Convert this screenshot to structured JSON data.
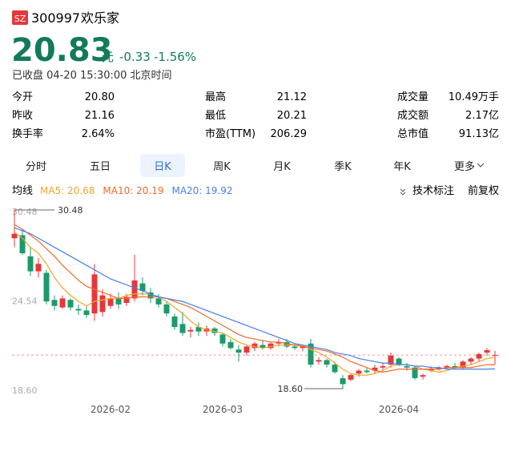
{
  "header": {
    "exchange": "SZ",
    "code": "300997",
    "name": "欢乐家",
    "price": "20.83",
    "unit": "元",
    "change": "-0.33",
    "change_pct": "-1.56%",
    "status": "已收盘 04-20 15:30:00 北京时间"
  },
  "stats": [
    {
      "label": "今开",
      "value": "20.80"
    },
    {
      "label": "最高",
      "value": "21.12"
    },
    {
      "label": "成交量",
      "value": "10.49万手"
    },
    {
      "label": "昨收",
      "value": "21.16"
    },
    {
      "label": "最低",
      "value": "20.21"
    },
    {
      "label": "成交额",
      "value": "2.17亿"
    },
    {
      "label": "换手率",
      "value": "2.64%"
    },
    {
      "label": "市盈(TTM)",
      "value": "206.29"
    },
    {
      "label": "总市值",
      "value": "91.13亿"
    }
  ],
  "tabs": [
    {
      "label": "分时"
    },
    {
      "label": "五日"
    },
    {
      "label": "日K",
      "active": true
    },
    {
      "label": "周K"
    },
    {
      "label": "月K"
    },
    {
      "label": "季K"
    },
    {
      "label": "年K"
    },
    {
      "label": "更多",
      "menu": true
    }
  ],
  "indicator_bar": {
    "label": "均线",
    "tools": [
      "技术标注",
      "前复权"
    ]
  },
  "chart_data": {
    "type": "candlestick",
    "categories": [
      null,
      null,
      null,
      null,
      null,
      null,
      null,
      null,
      null,
      null,
      null,
      null,
      "2026-02",
      null,
      null,
      null,
      null,
      null,
      null,
      null,
      null,
      null,
      null,
      null,
      null,
      null,
      "2026-03",
      null,
      null,
      null,
      null,
      null,
      null,
      null,
      null,
      null,
      null,
      null,
      null,
      null,
      null,
      null,
      null,
      null,
      null,
      null,
      null,
      null,
      "2026-04",
      null,
      null,
      null,
      null,
      null,
      null,
      null,
      null,
      null,
      null,
      null,
      null
    ],
    "open": [
      28.6,
      28.8,
      27.4,
      26.4,
      26.3,
      24.5,
      24.0,
      24.5,
      23.9,
      23.8,
      23.6,
      23.7,
      24.1,
      24.6,
      24.3,
      24.6,
      25.6,
      25.0,
      24.6,
      24.2,
      23.4,
      22.9,
      22.4,
      22.7,
      22.4,
      22.6,
      22.2,
      21.7,
      21.2,
      21.0,
      21.3,
      21.5,
      21.3,
      21.6,
      21.7,
      21.4,
      21.3,
      21.6,
      20.4,
      20.5,
      20.2,
      19.3,
      19.2,
      19.6,
      19.8,
      19.8,
      20.0,
      20.2,
      20.6,
      20.1,
      20.0,
      19.4,
      19.8,
      19.9,
      20.0,
      20.1,
      20.0,
      20.4,
      20.6,
      21.0,
      20.8
    ],
    "high": [
      30.48,
      29.2,
      28.0,
      27.3,
      26.5,
      24.8,
      24.8,
      24.6,
      24.2,
      24.1,
      26.9,
      25.2,
      24.9,
      25.0,
      24.9,
      27.5,
      26.0,
      25.3,
      24.9,
      24.4,
      23.6,
      23.7,
      22.7,
      23.0,
      22.8,
      22.7,
      22.3,
      21.9,
      21.5,
      21.5,
      21.7,
      21.8,
      21.7,
      21.9,
      21.9,
      21.6,
      21.5,
      21.9,
      20.7,
      20.6,
      20.4,
      19.5,
      19.6,
      19.9,
      20.0,
      20.2,
      20.3,
      21.0,
      20.7,
      20.3,
      20.1,
      19.6,
      20.1,
      20.1,
      20.2,
      20.3,
      20.5,
      20.7,
      21.0,
      21.3,
      21.12
    ],
    "low": [
      28.0,
      27.5,
      26.1,
      26.0,
      24.2,
      23.8,
      23.9,
      23.8,
      23.5,
      23.3,
      23.1,
      23.4,
      23.9,
      23.9,
      24.1,
      24.4,
      24.8,
      24.3,
      24.0,
      23.4,
      22.5,
      22.1,
      22.0,
      22.1,
      22.1,
      22.1,
      21.4,
      21.2,
      20.4,
      20.8,
      21.1,
      21.2,
      21.2,
      21.4,
      21.3,
      21.2,
      21.1,
      20.0,
      20.2,
      20.0,
      19.6,
      18.6,
      19.1,
      19.4,
      19.6,
      19.6,
      19.8,
      20.0,
      20.1,
      19.8,
      19.2,
      19.2,
      19.7,
      19.8,
      19.9,
      19.9,
      19.9,
      20.2,
      20.4,
      20.8,
      20.21
    ],
    "close": [
      28.9,
      27.6,
      26.4,
      26.9,
      24.4,
      24.1,
      24.6,
      24.0,
      23.8,
      23.5,
      26.2,
      24.8,
      24.6,
      24.2,
      24.7,
      25.8,
      25.1,
      24.6,
      24.2,
      23.6,
      22.7,
      22.3,
      22.5,
      22.4,
      22.6,
      22.3,
      21.6,
      21.3,
      21.0,
      21.4,
      21.6,
      21.3,
      21.6,
      21.7,
      21.4,
      21.3,
      21.4,
      20.2,
      20.5,
      20.2,
      19.7,
      18.9,
      19.5,
      19.8,
      19.7,
      20.0,
      20.1,
      20.8,
      20.2,
      20.0,
      19.3,
      19.5,
      19.9,
      20.0,
      20.1,
      20.0,
      20.4,
      20.6,
      20.9,
      21.16,
      20.83
    ],
    "up_color": "#e5383b",
    "down_color": "#1b9a6b",
    "series": [
      {
        "name": "MA5: 20.68",
        "color": "#f0a52a",
        "values": [
          29.0,
          28.6,
          28.0,
          27.6,
          26.9,
          26.0,
          25.3,
          24.8,
          24.4,
          24.1,
          24.4,
          24.5,
          24.6,
          24.6,
          24.8,
          24.9,
          24.9,
          24.9,
          24.7,
          24.4,
          24.0,
          23.6,
          23.1,
          22.7,
          22.5,
          22.4,
          22.3,
          22.0,
          21.7,
          21.5,
          21.4,
          21.3,
          21.4,
          21.5,
          21.5,
          21.5,
          21.5,
          21.2,
          21.0,
          20.7,
          20.3,
          19.9,
          19.6,
          19.5,
          19.5,
          19.6,
          19.8,
          20.1,
          20.2,
          20.2,
          20.1,
          19.9,
          19.8,
          19.7,
          19.8,
          20.0,
          20.1,
          20.2,
          20.4,
          20.6,
          20.68
        ]
      },
      {
        "name": "MA10: 20.19",
        "color": "#ec6b2d",
        "values": [
          29.5,
          29.2,
          28.8,
          28.4,
          27.9,
          27.4,
          26.8,
          26.3,
          25.8,
          25.4,
          25.2,
          25.0,
          24.8,
          24.6,
          24.6,
          24.7,
          24.7,
          24.7,
          24.7,
          24.6,
          24.4,
          24.2,
          24.0,
          23.7,
          23.4,
          23.1,
          22.8,
          22.5,
          22.2,
          22.0,
          21.9,
          21.8,
          21.7,
          21.7,
          21.6,
          21.5,
          21.4,
          21.3,
          21.2,
          21.1,
          20.9,
          20.7,
          20.4,
          20.2,
          20.0,
          19.8,
          19.7,
          19.8,
          19.9,
          19.9,
          19.9,
          19.9,
          19.9,
          19.9,
          20.0,
          20.0,
          20.0,
          20.0,
          20.1,
          20.2,
          20.19
        ]
      },
      {
        "name": "MA20: 19.92",
        "color": "#4a7ee6",
        "values": [
          29.3,
          29.1,
          28.9,
          28.6,
          28.3,
          28.0,
          27.7,
          27.4,
          27.1,
          26.8,
          26.5,
          26.2,
          25.9,
          25.7,
          25.5,
          25.3,
          25.1,
          24.9,
          24.7,
          24.6,
          24.5,
          24.4,
          24.2,
          24.0,
          23.8,
          23.6,
          23.4,
          23.2,
          23.0,
          22.8,
          22.6,
          22.4,
          22.2,
          22.0,
          21.8,
          21.6,
          21.5,
          21.4,
          21.3,
          21.2,
          21.0,
          20.9,
          20.8,
          20.6,
          20.5,
          20.4,
          20.3,
          20.3,
          20.2,
          20.2,
          20.1,
          20.1,
          20.0,
          20.0,
          19.9,
          19.9,
          19.9,
          19.9,
          19.9,
          19.9,
          19.92
        ]
      }
    ],
    "ylim": [
      18.6,
      30.48
    ],
    "yticks": [
      30.48,
      24.54,
      {
        "value": 18.6,
        "label": "18.60"
      }
    ],
    "high_label": "30.48",
    "low_label": "18.60",
    "grid": false
  }
}
